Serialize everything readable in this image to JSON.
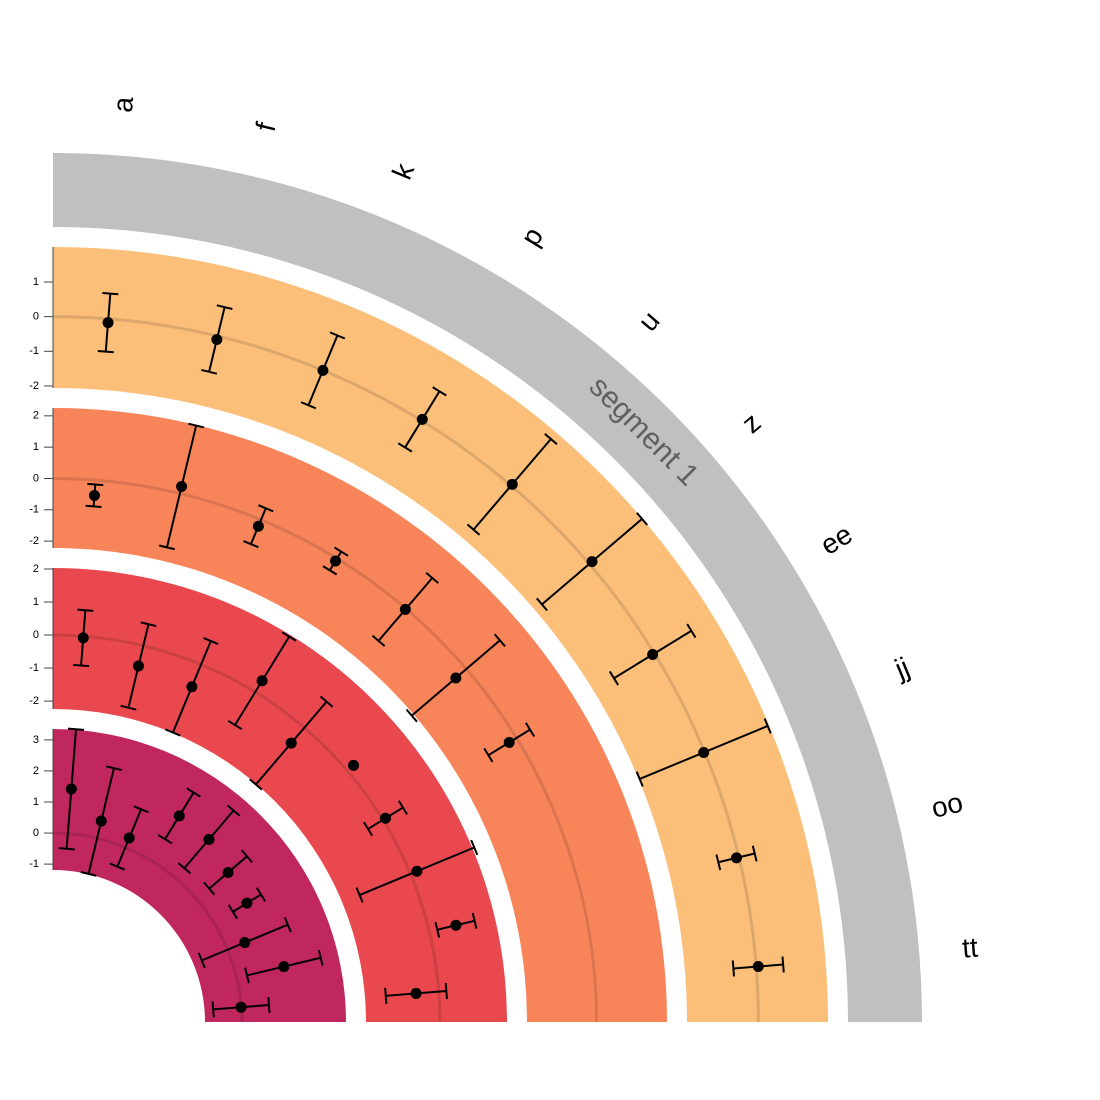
{
  "chart_data": {
    "type": "circular_errorbar",
    "categories": [
      "a",
      "f",
      "k",
      "p",
      "u",
      "z",
      "ee",
      "jj",
      "oo",
      "tt"
    ],
    "segment_label": "segment 1",
    "segment_color": "#c0c0c0",
    "tracks": [
      {
        "color": "#fbbf7a",
        "ylim": [
          -2.06,
          2.01
        ],
        "yticks": [
          -2,
          -1,
          0,
          1
        ],
        "values": [
          -0.11,
          -0.1,
          0,
          0.04,
          0.05,
          0.1,
          -0.06,
          -0.03,
          -0.07,
          0.06
        ],
        "errors": [
          0.84,
          0.96,
          1.09,
          0.95,
          1.72,
          1.9,
          1.31,
          2.0,
          0.54,
          0.72
        ]
      },
      {
        "color": "#f8845a",
        "ylim": [
          -2.22,
          2.25
        ],
        "yticks": [
          -2,
          -1,
          0,
          1,
          2
        ],
        "values": [
          -0.49,
          0.23,
          -0.22,
          -0.09,
          -0.03,
          -0.44,
          -0.27,
          null,
          null,
          null
        ],
        "errors": [
          0.35,
          2.0,
          0.62,
          0.35,
          1.32,
          1.85,
          0.78,
          null,
          null,
          null
        ]
      },
      {
        "color": "#e9494e",
        "ylim": [
          -2.24,
          2.03
        ],
        "yticks": [
          -2,
          -1,
          0,
          1,
          2
        ],
        "values": [
          -0.05,
          -0.63,
          -0.73,
          0.4,
          -0.61,
          0.25,
          0.09,
          0.21,
          0.83,
          -0.69
        ],
        "errors": [
          0.84,
          1.3,
          1.5,
          1.57,
          1.65,
          null,
          0.62,
          1.88,
          0.58,
          0.92
        ]
      },
      {
        "color": "#c0275e",
        "ylim": [
          -1.19,
          3.35
        ],
        "yticks": [
          -1,
          0,
          1,
          2,
          3
        ],
        "values": [
          1.44,
          0.57,
          0.33,
          1.7,
          1.65,
          1.33,
          1.24,
          0.6,
          1.56,
          -0.01
        ],
        "errors": [
          1.93,
          1.75,
          1.0,
          0.88,
          1.22,
          0.8,
          0.53,
          1.5,
          1.22,
          0.9
        ]
      }
    ]
  }
}
